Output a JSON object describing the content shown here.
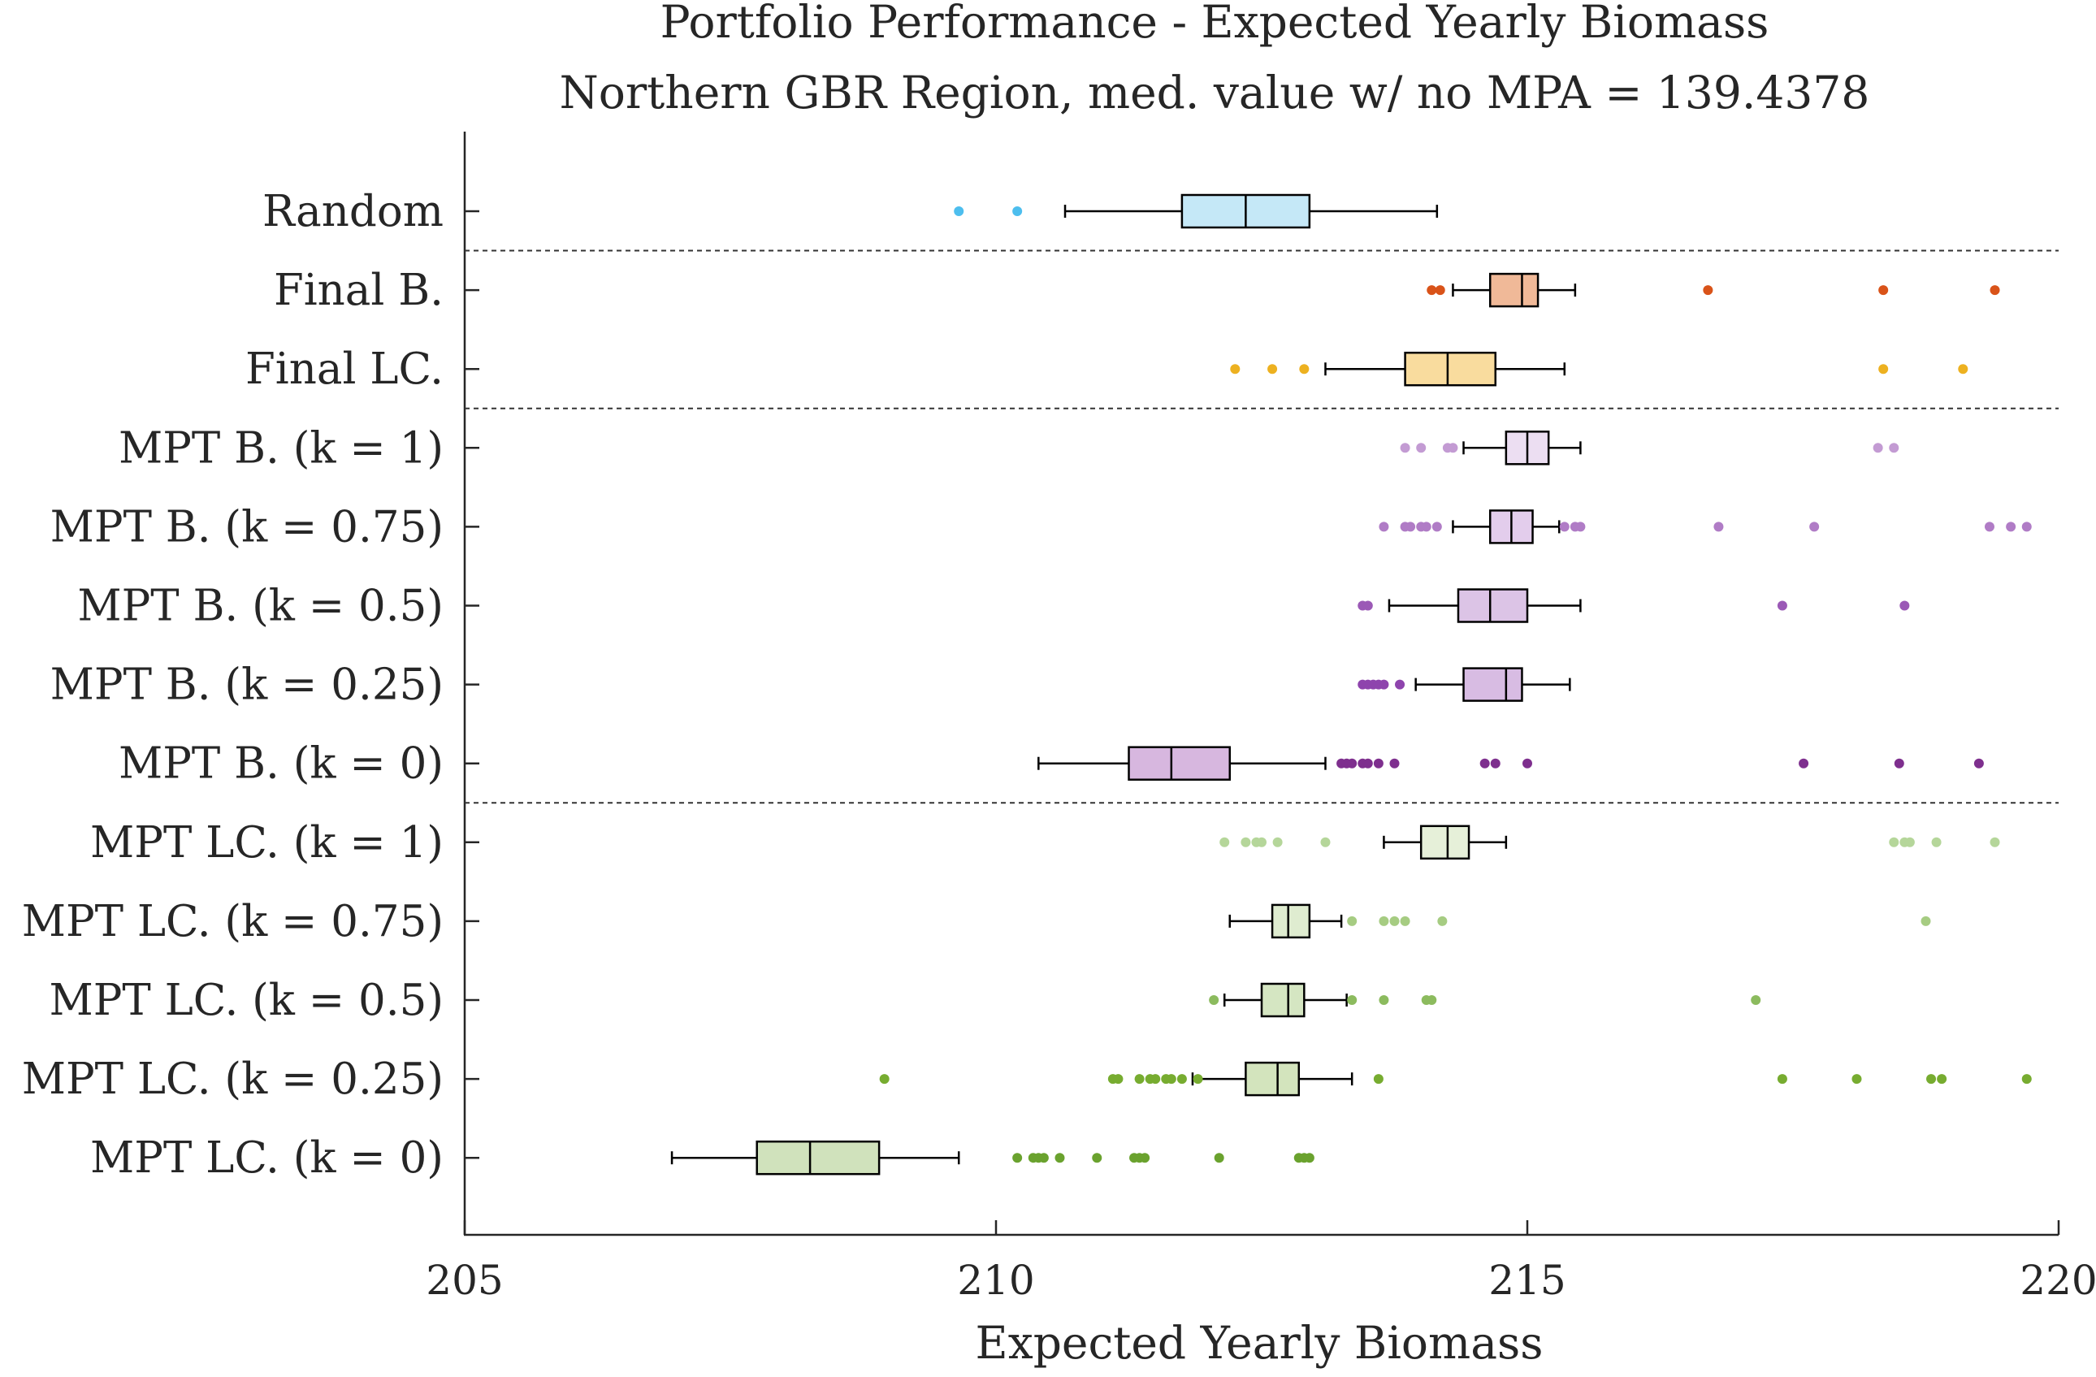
{
  "chart_data": {
    "type": "boxplot",
    "title": "Portfolio Performance - Expected Yearly Biomass",
    "subtitle": "Northern GBR Region, med. value w/ no MPA = 139.4378",
    "xlabel": "Expected Yearly Biomass",
    "ylabel": "",
    "xlim": [
      205,
      220
    ],
    "xticks": [
      "205",
      "210",
      "215",
      "220"
    ],
    "xtick_values": [
      205,
      210,
      215,
      220
    ],
    "grid": false,
    "separators_after_rows": [
      0,
      2,
      7
    ],
    "series": [
      {
        "name": "Random",
        "color": "#4DBEEE",
        "fill": "#c5e8f7",
        "min": 210.65,
        "q1": 211.75,
        "median": 212.35,
        "q3": 212.95,
        "max": 214.15,
        "outliers": [
          209.65,
          210.2
        ]
      },
      {
        "name": "Final B.",
        "color": "#D95319",
        "fill": "#f0b998",
        "min": 214.3,
        "q1": 214.65,
        "median": 214.95,
        "q3": 215.1,
        "max": 215.45,
        "outliers": [
          214.1,
          214.18,
          216.7,
          218.35,
          219.4
        ]
      },
      {
        "name": "Final LC.",
        "color": "#EDB120",
        "fill": "#f9dc9e",
        "min": 213.1,
        "q1": 213.85,
        "median": 214.25,
        "q3": 214.7,
        "max": 215.35,
        "outliers": [
          212.25,
          212.6,
          212.9,
          218.35,
          219.1
        ]
      },
      {
        "name": "MPT B. (k = 1)",
        "color": "#C39BD3",
        "fill": "#ecdef2",
        "min": 214.4,
        "q1": 214.8,
        "median": 215.0,
        "q3": 215.2,
        "max": 215.5,
        "outliers": [
          213.85,
          214.0,
          214.25,
          214.3,
          218.3,
          218.45
        ]
      },
      {
        "name": "MPT B. (k = 0.75)",
        "color": "#B07CC6",
        "fill": "#e3cdec",
        "min": 214.3,
        "q1": 214.65,
        "median": 214.85,
        "q3": 215.05,
        "max": 215.3,
        "outliers": [
          213.65,
          213.85,
          213.9,
          214.0,
          214.05,
          214.15,
          215.35,
          215.45,
          215.5,
          216.8,
          217.7,
          219.35,
          219.55,
          219.7
        ]
      },
      {
        "name": "MPT B. (k = 0.5)",
        "color": "#9B59B6",
        "fill": "#dcc4e6",
        "min": 213.7,
        "q1": 214.35,
        "median": 214.65,
        "q3": 215.0,
        "max": 215.5,
        "outliers": [
          213.45,
          213.5,
          217.4,
          218.55
        ]
      },
      {
        "name": "MPT B. (k = 0.25)",
        "color": "#8E44AD",
        "fill": "#d8bce3",
        "min": 213.95,
        "q1": 214.4,
        "median": 214.8,
        "q3": 214.95,
        "max": 215.4,
        "outliers": [
          213.45,
          213.5,
          213.55,
          213.6,
          213.65,
          213.8
        ]
      },
      {
        "name": "MPT B. (k = 0)",
        "color": "#7E2F8E",
        "fill": "#d7b7df",
        "min": 210.4,
        "q1": 211.25,
        "median": 211.65,
        "q3": 212.2,
        "max": 213.1,
        "outliers": [
          213.25,
          213.3,
          213.35,
          213.45,
          213.5,
          213.6,
          213.75,
          214.6,
          214.7,
          215.0,
          217.6,
          218.5,
          219.25
        ]
      },
      {
        "name": "MPT LC. (k = 1)",
        "color": "#B5D69A",
        "fill": "#e6f0d9",
        "min": 213.65,
        "q1": 214.0,
        "median": 214.25,
        "q3": 214.45,
        "max": 214.8,
        "outliers": [
          212.15,
          212.35,
          212.45,
          212.5,
          212.65,
          213.1,
          218.45,
          218.55,
          218.6,
          218.85,
          219.4
        ]
      },
      {
        "name": "MPT LC. (k = 0.75)",
        "color": "#A6CC82",
        "fill": "#dfecd0",
        "min": 212.2,
        "q1": 212.6,
        "median": 212.75,
        "q3": 212.95,
        "max": 213.25,
        "outliers": [
          213.35,
          213.65,
          213.75,
          213.85,
          214.2,
          218.75
        ]
      },
      {
        "name": "MPT LC. (k = 0.5)",
        "color": "#8CBB5E",
        "fill": "#d5e6c2",
        "min": 212.15,
        "q1": 212.5,
        "median": 212.75,
        "q3": 212.9,
        "max": 213.3,
        "outliers": [
          212.05,
          213.35,
          213.65,
          214.05,
          214.1,
          217.15
        ]
      },
      {
        "name": "MPT LC. (k = 0.25)",
        "color": "#77AC30",
        "fill": "#d3e4bd",
        "min": 211.85,
        "q1": 212.35,
        "median": 212.65,
        "q3": 212.85,
        "max": 213.35,
        "outliers": [
          208.95,
          211.1,
          211.15,
          211.35,
          211.45,
          211.5,
          211.6,
          211.65,
          211.75,
          211.9,
          213.6,
          217.4,
          218.1,
          218.8,
          218.9,
          219.7
        ]
      },
      {
        "name": "MPT LC. (k = 0)",
        "color": "#6AA22E",
        "fill": "#d0e2bc",
        "min": 206.95,
        "q1": 207.75,
        "median": 208.25,
        "q3": 208.9,
        "max": 209.65,
        "outliers": [
          210.2,
          210.35,
          210.4,
          210.45,
          210.6,
          210.95,
          211.3,
          211.35,
          211.4,
          212.1,
          212.85,
          212.9,
          212.95
        ]
      }
    ]
  }
}
